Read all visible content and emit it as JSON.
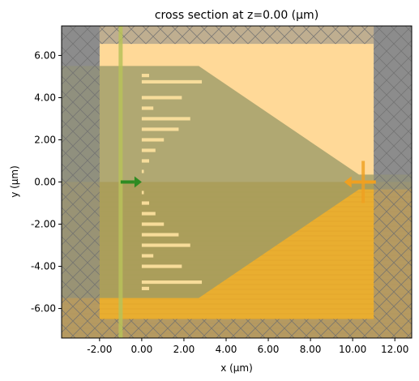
{
  "chart_data": {
    "type": "diagram",
    "title": "cross section at z=0.00 (μm)",
    "xlabel": "x (μm)",
    "ylabel": "y (μm)",
    "xlim": [
      -3.8,
      12.8
    ],
    "ylim": [
      -7.4,
      7.4
    ],
    "xticks": [
      {
        "value": -2,
        "label": "-2.00"
      },
      {
        "value": 0,
        "label": "0.00"
      },
      {
        "value": 2,
        "label": "2.00"
      },
      {
        "value": 4,
        "label": "4.00"
      },
      {
        "value": 6,
        "label": "6.00"
      },
      {
        "value": 8,
        "label": "8.00"
      },
      {
        "value": 10,
        "label": "10.00"
      },
      {
        "value": 12,
        "label": "12.00"
      }
    ],
    "yticks": [
      {
        "value": 6,
        "label": "6.00"
      },
      {
        "value": 4,
        "label": "4.00"
      },
      {
        "value": 2,
        "label": "2.00"
      },
      {
        "value": 0,
        "label": "0.00"
      },
      {
        "value": -2,
        "label": "-2.00"
      },
      {
        "value": -4,
        "label": "-4.00"
      },
      {
        "value": -6,
        "label": "-6.00"
      }
    ],
    "colors": {
      "simulation_domain": "#ffd998",
      "substrate": "#e9ae30",
      "structure": "#9a9a68",
      "pml": "#8e8e8e",
      "source": "#b8c25a",
      "source_arrow": "#2e8b22",
      "monitor": "#f0a020"
    },
    "simulation_domain": {
      "x": [
        -2,
        11
      ],
      "y": [
        -5.5,
        6.55
      ]
    },
    "pml": {
      "x_inner": [
        -2,
        11
      ],
      "y_inner": [
        -6.5,
        6.55
      ]
    },
    "substrate": {
      "x": [
        -3.8,
        12.8
      ],
      "y": [
        -7.4,
        0
      ]
    },
    "taper_polygon": [
      [
        -3.8,
        5.5
      ],
      [
        2.7,
        5.5
      ],
      [
        10.3,
        0.35
      ],
      [
        12.8,
        0.35
      ],
      [
        12.8,
        -0.35
      ],
      [
        10.3,
        -0.35
      ],
      [
        2.7,
        -5.5
      ],
      [
        -3.8,
        -5.5
      ]
    ],
    "grating_bars": [
      {
        "y": 5.05,
        "x_end": 0.35
      },
      {
        "y": 4.75,
        "x_end": 2.85
      },
      {
        "y": 4.0,
        "x_end": 1.9
      },
      {
        "y": 3.5,
        "x_end": 0.55
      },
      {
        "y": 3.0,
        "x_end": 2.3
      },
      {
        "y": 2.5,
        "x_end": 1.75
      },
      {
        "y": 2.0,
        "x_end": 1.05
      },
      {
        "y": 1.5,
        "x_end": 0.65
      },
      {
        "y": 1.0,
        "x_end": 0.35
      },
      {
        "y": 0.5,
        "x_end": 0.1
      },
      {
        "y": -0.5,
        "x_end": 0.1
      },
      {
        "y": -1.0,
        "x_end": 0.35
      },
      {
        "y": -1.5,
        "x_end": 0.65
      },
      {
        "y": -2.0,
        "x_end": 1.05
      },
      {
        "y": -2.5,
        "x_end": 1.75
      },
      {
        "y": -3.0,
        "x_end": 2.3
      },
      {
        "y": -3.5,
        "x_end": 0.55
      },
      {
        "y": -4.0,
        "x_end": 1.9
      },
      {
        "y": -4.75,
        "x_end": 2.85
      },
      {
        "y": -5.05,
        "x_end": 0.35
      }
    ],
    "source_x": -1.0,
    "source_arrow": {
      "x": [
        -1.0,
        0.0
      ],
      "y": 0.0
    },
    "monitor": {
      "x": 10.5,
      "y": [
        -1.0,
        1.0
      ]
    },
    "monitor_arrow": {
      "x": [
        11.1,
        9.6
      ],
      "y": 0.0
    }
  }
}
